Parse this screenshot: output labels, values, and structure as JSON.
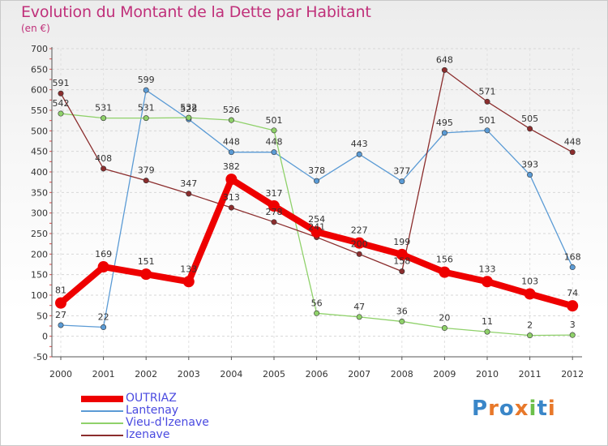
{
  "header": {
    "title": "Evolution du Montant de la Dette par Habitant",
    "subtitle": "(en €)"
  },
  "logo": {
    "text": "Proxiti",
    "colors": [
      "#3a86c8",
      "#e8782a",
      "#3a86c8",
      "#e8782a",
      "#6cc04a",
      "#3a86c8",
      "#e8782a"
    ]
  },
  "chart_data": {
    "type": "line",
    "title": "Evolution du Montant de la Dette par Habitant",
    "subtitle": "(en €)",
    "xlabel": "",
    "ylabel": "",
    "categories": [
      "2000",
      "2001",
      "2002",
      "2003",
      "2004",
      "2005",
      "2006",
      "2007",
      "2008",
      "2009",
      "2010",
      "2011",
      "2012"
    ],
    "ylim": [
      -50,
      700
    ],
    "yticks": [
      -50,
      0,
      50,
      100,
      150,
      200,
      250,
      300,
      350,
      400,
      450,
      500,
      550,
      600,
      650,
      700
    ],
    "grid": true,
    "legend_position": "bottom-left",
    "series": [
      {
        "name": "OUTRIAZ",
        "color": "#ee0000",
        "emphasis": true,
        "values": [
          81,
          169,
          151,
          133,
          382,
          317,
          254,
          227,
          199,
          156,
          133,
          103,
          74
        ]
      },
      {
        "name": "Lantenay",
        "color": "#5b9bd5",
        "emphasis": false,
        "values": [
          27,
          22,
          599,
          528,
          448,
          448,
          378,
          443,
          377,
          495,
          501,
          393,
          168
        ]
      },
      {
        "name": "Vieu-d'Izenave",
        "color": "#8fd16a",
        "emphasis": false,
        "values": [
          542,
          531,
          531,
          532,
          526,
          501,
          56,
          47,
          36,
          20,
          11,
          2,
          3
        ]
      },
      {
        "name": "Izenave",
        "color": "#8b2d2d",
        "emphasis": false,
        "values": [
          591,
          408,
          379,
          347,
          313,
          278,
          241,
          200,
          158,
          648,
          571,
          505,
          448
        ]
      }
    ]
  }
}
